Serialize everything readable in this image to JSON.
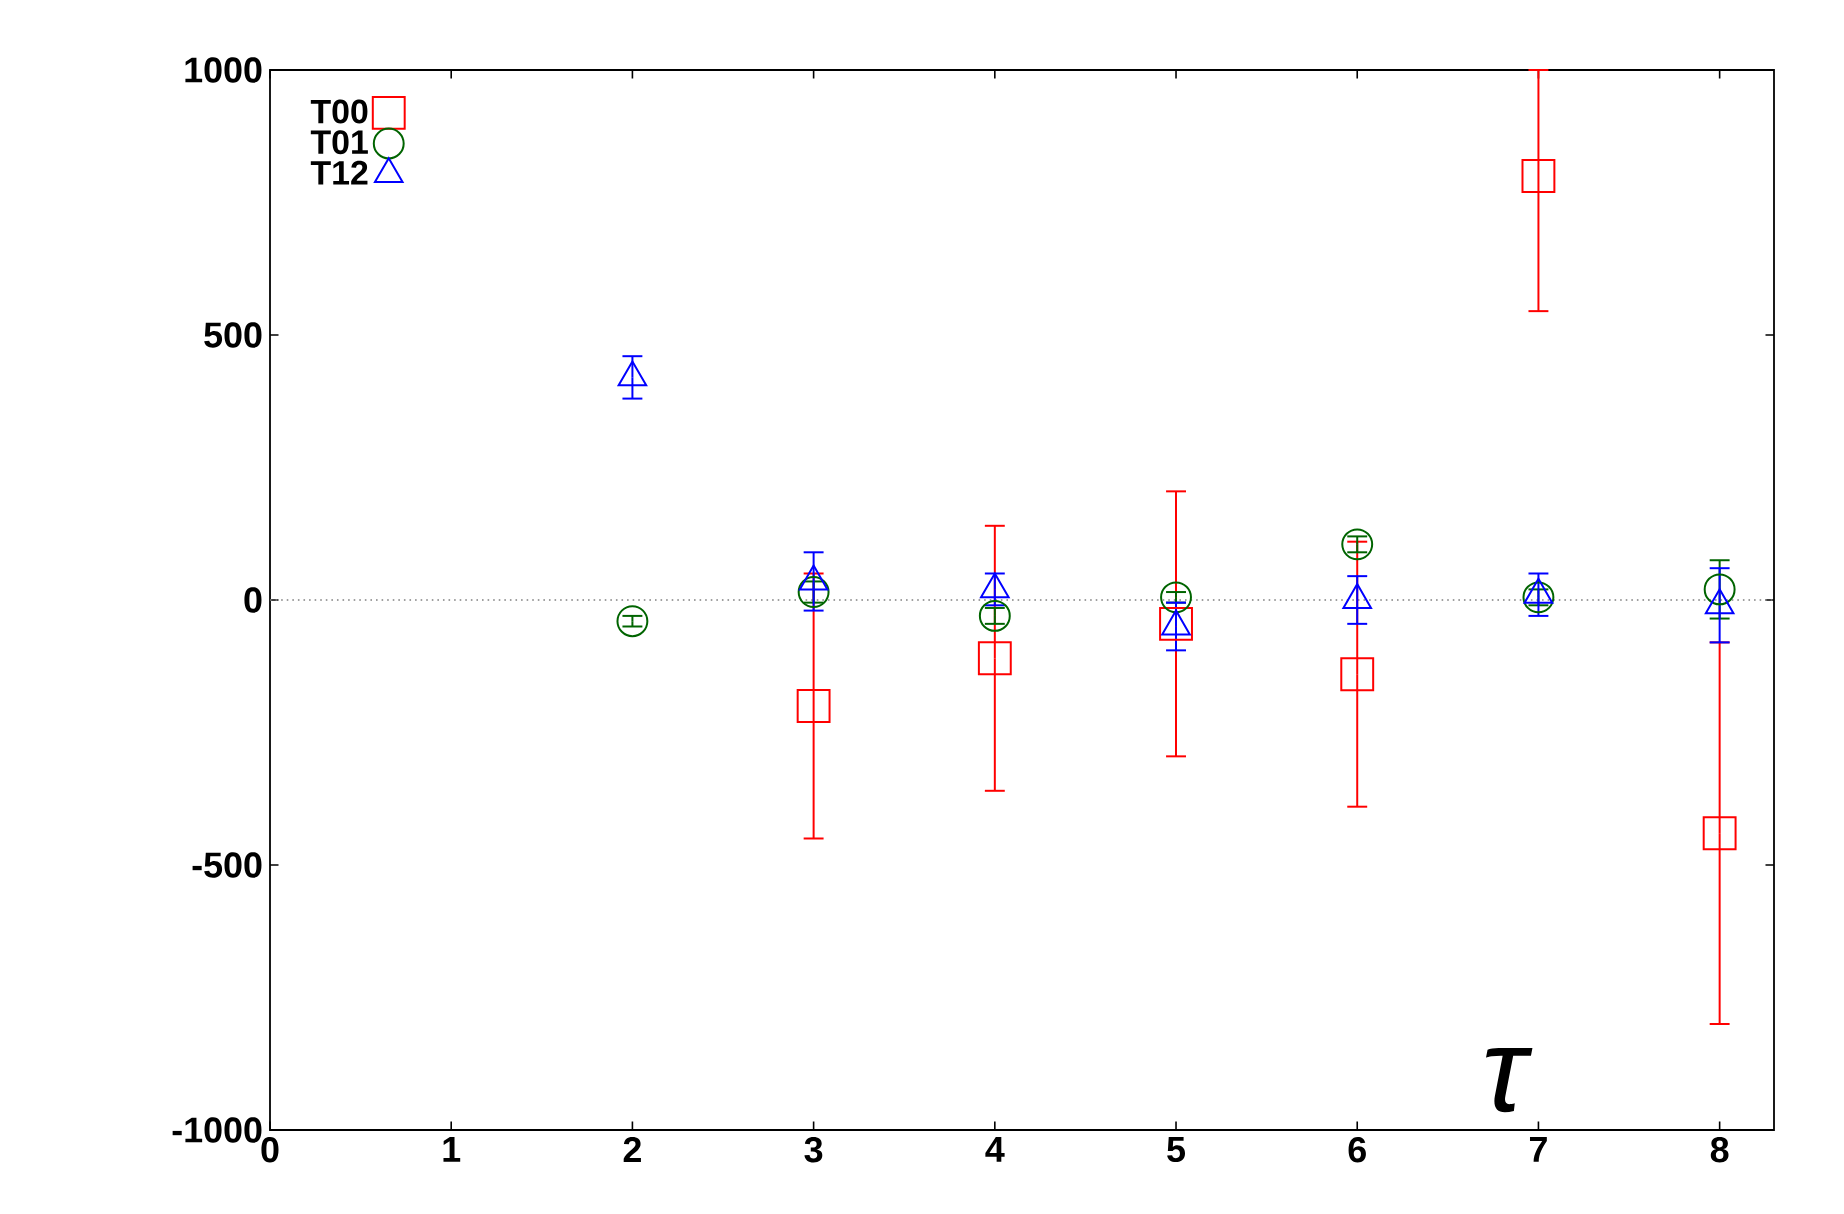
{
  "chart_data": {
    "type": "scatter",
    "xlim": [
      0,
      8.3
    ],
    "xticks": [
      0,
      1,
      2,
      3,
      4,
      5,
      6,
      7,
      8
    ],
    "ylim": [
      -1000,
      1000
    ],
    "yticks": [
      -1000,
      -500,
      0,
      500,
      1000
    ],
    "grid": false,
    "legend": "top left",
    "series": [
      {
        "name": "T00",
        "color": "#ff0000",
        "marker": "square",
        "x": [
          3,
          4,
          5,
          6,
          7,
          8
        ],
        "values": [
          -200,
          -110,
          -45,
          -140,
          800,
          -440
        ],
        "errors": [
          250,
          250,
          250,
          250,
          [
            545,
            1000
          ],
          360
        ]
      },
      {
        "name": "T01",
        "color": "#006400",
        "marker": "circle",
        "x": [
          2,
          3,
          4,
          5,
          6,
          7,
          8
        ],
        "values": [
          -40,
          15,
          -30,
          5,
          105,
          5,
          20
        ],
        "errors": [
          10,
          20,
          15,
          10,
          15,
          15,
          55
        ]
      },
      {
        "name": "T12",
        "color": "#0000ff",
        "marker": "triangle",
        "x": [
          2,
          3,
          4,
          5,
          6,
          7,
          8
        ],
        "values": [
          420,
          35,
          20,
          -50,
          0,
          10,
          -10
        ],
        "errors": [
          40,
          55,
          30,
          45,
          45,
          40,
          70
        ]
      }
    ],
    "ref_lines": [
      {
        "axis": "y",
        "value": 0,
        "color": "#808080",
        "line_style": "dotted"
      }
    ],
    "annotations": [
      "τ"
    ]
  }
}
